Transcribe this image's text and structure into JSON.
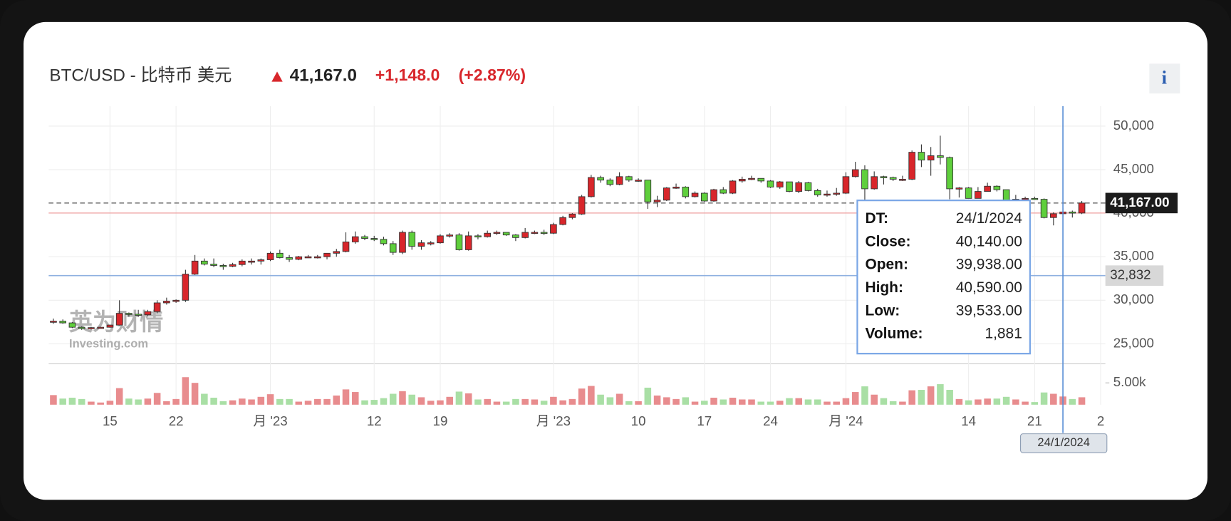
{
  "header": {
    "symbol": "BTC/USD - 比特币 美元",
    "price": "41,167.0",
    "change": "+1,148.0",
    "change_pct": "(+2.87%)",
    "info_button": "i"
  },
  "watermark": {
    "cn": "英为财情",
    "en": "Investing.com"
  },
  "chart_data": {
    "type": "candlestick",
    "up_color": "#d8262b",
    "down_color": "#5fcf3c",
    "up_volume_color": "#e88c8e",
    "down_volume_color": "#a9dfa5",
    "grid": true,
    "xlim": [
      -0.5,
      111.5
    ],
    "xticks": [
      {
        "value": 6,
        "label": "15"
      },
      {
        "value": 13,
        "label": "22"
      },
      {
        "value": 23,
        "label": "月 '23"
      },
      {
        "value": 34,
        "label": "12"
      },
      {
        "value": 41,
        "label": "19"
      },
      {
        "value": 53,
        "label": "月 '23"
      },
      {
        "value": 62,
        "label": "10"
      },
      {
        "value": 69,
        "label": "17"
      },
      {
        "value": 76,
        "label": "24"
      },
      {
        "value": 84,
        "label": "月 '24"
      },
      {
        "value": 97,
        "label": "14"
      },
      {
        "value": 104,
        "label": "21"
      },
      {
        "value": 111,
        "label": "2"
      }
    ],
    "ylim": [
      22700,
      52300
    ],
    "yticks": [
      {
        "value": 25000,
        "label": "25,000"
      },
      {
        "value": 30000,
        "label": "30,000"
      },
      {
        "value": 35000,
        "label": "35,000"
      },
      {
        "value": 40000,
        "label": "40,000"
      },
      {
        "value": 45000,
        "label": "45,000"
      },
      {
        "value": 50000,
        "label": "50,000"
      }
    ],
    "volume_ylim": [
      0,
      9000
    ],
    "volume_yticks": [
      {
        "value": 5000,
        "label": "5.00k"
      }
    ],
    "open": [
      27500,
      27600,
      27400,
      26900,
      26750,
      26860,
      26900,
      27150,
      28500,
      28400,
      28330,
      28700,
      29700,
      29900,
      30000,
      33000,
      34500,
      34150,
      34000,
      33900,
      34100,
      34500,
      34500,
      34650,
      35400,
      34900,
      34700,
      35000,
      35000,
      35000,
      35400,
      35600,
      36700,
      37300,
      37100,
      37000,
      36500,
      35500,
      37800,
      36200,
      36600,
      36600,
      37400,
      37500,
      35800,
      37400,
      37300,
      37700,
      37800,
      37500,
      37200,
      37800,
      37800,
      37700,
      38700,
      39500,
      39900,
      41900,
      44100,
      43800,
      43300,
      44200,
      43800,
      43800,
      41300,
      41500,
      42900,
      43000,
      41900,
      42300,
      41400,
      42700,
      42300,
      43700,
      43900,
      44000,
      43700,
      43000,
      43600,
      42500,
      43500,
      42600,
      42100,
      42200,
      42300,
      44200,
      45000,
      42800,
      44200,
      44100,
      43900,
      43900,
      47000,
      46100,
      46600,
      46400,
      42800,
      42900,
      41700,
      42500,
      43100,
      42700,
      41300,
      41600,
      41700,
      41600,
      39500,
      39938,
      40140,
      40019
    ],
    "high": [
      27900,
      27800,
      27500,
      27000,
      26950,
      26950,
      27200,
      30000,
      28600,
      28900,
      28900,
      30000,
      30300,
      30100,
      33500,
      35200,
      34800,
      34800,
      34200,
      34300,
      34700,
      34800,
      34800,
      35600,
      35800,
      35200,
      35100,
      35200,
      35200,
      35400,
      35900,
      37800,
      37900,
      37500,
      37400,
      37300,
      36800,
      38000,
      38000,
      36900,
      36800,
      37600,
      37700,
      37700,
      37900,
      37600,
      38000,
      38000,
      37800,
      37600,
      38300,
      38000,
      38100,
      38900,
      39700,
      40000,
      42100,
      44400,
      44300,
      44000,
      44700,
      44300,
      44000,
      43800,
      42000,
      43000,
      43400,
      43100,
      42500,
      42400,
      42800,
      43000,
      43800,
      44200,
      44300,
      44000,
      43800,
      43700,
      43600,
      43700,
      43600,
      42800,
      42600,
      42900,
      44700,
      45900,
      45500,
      44800,
      44300,
      44200,
      44300,
      47200,
      47900,
      47600,
      48900,
      46500,
      43000,
      43000,
      43000,
      43500,
      43200,
      42700,
      42100,
      41900,
      41900,
      41700,
      40100,
      40590,
      40300,
      41400
    ],
    "low": [
      27300,
      27300,
      26800,
      26600,
      26600,
      26800,
      26850,
      27100,
      28100,
      28100,
      28200,
      28500,
      29500,
      29700,
      29800,
      32900,
      34000,
      33800,
      33500,
      33800,
      33900,
      34100,
      34100,
      34500,
      34800,
      34400,
      34600,
      34900,
      34800,
      34700,
      35000,
      35500,
      36500,
      36900,
      36800,
      36300,
      35200,
      35300,
      35800,
      35800,
      36300,
      36500,
      37200,
      35700,
      35700,
      37000,
      37200,
      37500,
      37400,
      36800,
      37100,
      37600,
      37500,
      37600,
      38600,
      39300,
      39800,
      41800,
      43500,
      43100,
      43200,
      43600,
      43600,
      40500,
      40700,
      41400,
      42800,
      41700,
      41800,
      41300,
      41300,
      42200,
      42200,
      43500,
      43800,
      43500,
      42900,
      42800,
      42400,
      42300,
      42500,
      41900,
      41900,
      42000,
      42200,
      44100,
      40800,
      42700,
      43300,
      43700,
      43700,
      43800,
      45300,
      44300,
      45600,
      41600,
      41800,
      41700,
      41700,
      42500,
      42500,
      41200,
      40800,
      41400,
      41600,
      39400,
      38600,
      39533,
      39500,
      39900
    ],
    "close": [
      27600,
      27400,
      26900,
      26750,
      26860,
      26900,
      27150,
      28500,
      28400,
      28330,
      28700,
      29700,
      29900,
      30000,
      33000,
      34500,
      34150,
      34000,
      33900,
      34100,
      34500,
      34500,
      34650,
      35400,
      34900,
      34700,
      35000,
      35000,
      35000,
      35400,
      35600,
      36700,
      37300,
      37100,
      37000,
      36500,
      35500,
      37800,
      36200,
      36600,
      36600,
      37400,
      37500,
      35800,
      37400,
      37300,
      37700,
      37800,
      37500,
      37200,
      37800,
      37800,
      37700,
      38700,
      39500,
      39900,
      41900,
      44100,
      43800,
      43300,
      44200,
      43800,
      43800,
      41300,
      41500,
      42900,
      43000,
      41900,
      42300,
      41400,
      42700,
      42300,
      43700,
      43900,
      44000,
      43700,
      43000,
      43600,
      42500,
      43500,
      42600,
      42100,
      42200,
      42300,
      44200,
      45000,
      42800,
      44200,
      44100,
      43900,
      43900,
      47000,
      46100,
      46600,
      46400,
      42800,
      42900,
      41700,
      42500,
      43100,
      42700,
      41300,
      41600,
      41700,
      41600,
      39500,
      39938,
      40140,
      40019,
      41167
    ],
    "volume": [
      2200,
      1400,
      1600,
      1300,
      700,
      500,
      900,
      3800,
      1400,
      1200,
      1400,
      2700,
      800,
      1300,
      6300,
      5000,
      2500,
      1600,
      800,
      1000,
      1400,
      1200,
      1800,
      2400,
      1300,
      1300,
      700,
      900,
      1300,
      1300,
      2100,
      3500,
      2900,
      1000,
      1100,
      1500,
      2500,
      3100,
      2300,
      1700,
      900,
      1000,
      1800,
      3000,
      2600,
      1200,
      1300,
      700,
      700,
      1300,
      1300,
      1200,
      900,
      1800,
      1000,
      1300,
      3700,
      4300,
      2300,
      1700,
      2500,
      800,
      800,
      3900,
      2100,
      1700,
      1300,
      1700,
      700,
      900,
      1600,
      1200,
      1600,
      1200,
      1200,
      700,
      700,
      900,
      1500,
      1500,
      1200,
      1200,
      700,
      700,
      1500,
      2900,
      4200,
      2300,
      1500,
      800,
      700,
      3300,
      3400,
      4200,
      4700,
      3400,
      1300,
      1000,
      1200,
      1400,
      1400,
      1800,
      1200,
      700,
      600,
      2800,
      2500,
      1881,
      1300,
      1700
    ],
    "last_price": {
      "value": 41167,
      "label": "41,167.00"
    },
    "previous_close": 40019,
    "horizontal_line": {
      "value": 32832,
      "label": "32,832"
    },
    "crosshair": {
      "value": 107,
      "label": "24/1/2024"
    },
    "tooltip": {
      "rows": [
        {
          "label": "DT:",
          "value": "24/1/2024"
        },
        {
          "label": "Close:",
          "value": "40,140.00"
        },
        {
          "label": "Open:",
          "value": "39,938.00"
        },
        {
          "label": "High:",
          "value": "40,590.00"
        },
        {
          "label": "Low:",
          "value": "39,533.00"
        },
        {
          "label": "Volume:",
          "value": "1,881"
        }
      ]
    }
  }
}
